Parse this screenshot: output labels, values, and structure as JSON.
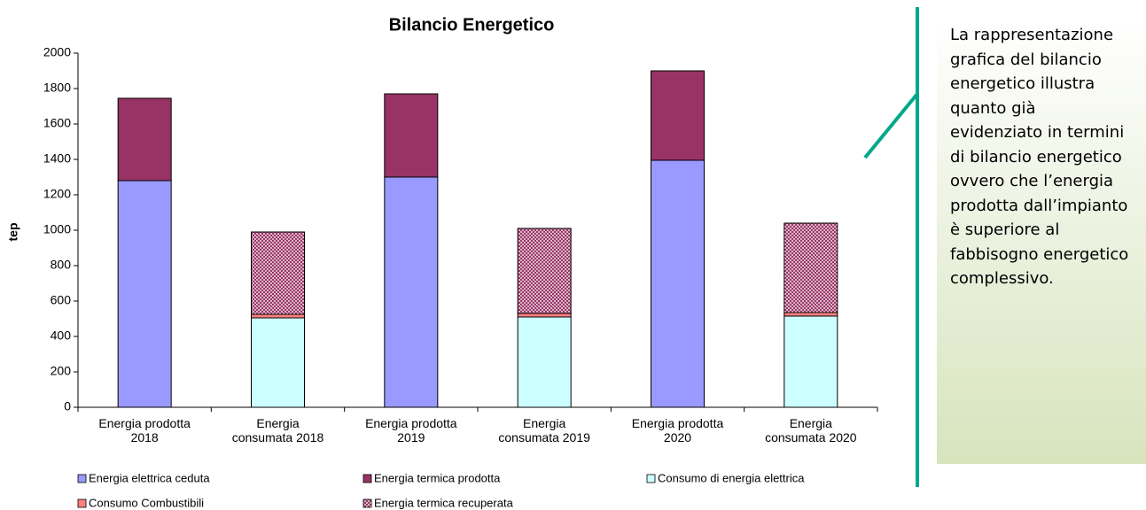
{
  "chart_data": {
    "type": "stacked_bar",
    "title": "Bilancio Energetico",
    "y_label": "tep",
    "categories": [
      "Energia prodotta 2018",
      "Energia consumata 2018",
      "Energia prodotta 2019",
      "Energia consumata 2019",
      "Energia prodotta 2020",
      "Energia consumata 2020"
    ],
    "series": [
      {
        "name": "Energia elettrica ceduta",
        "color": "#9999ff",
        "values": [
          1280,
          null,
          1300,
          null,
          1395,
          null
        ]
      },
      {
        "name": "Energia termica prodotta",
        "color": "#993366",
        "values": [
          465,
          null,
          470,
          null,
          505,
          null
        ]
      },
      {
        "name": "Consumo di energia elettrica",
        "color": "#ccffff",
        "values": [
          null,
          505,
          null,
          510,
          null,
          515
        ]
      },
      {
        "name": "Consumo Combustibili",
        "color": "#ff8080",
        "values": [
          null,
          20,
          null,
          20,
          null,
          20
        ]
      },
      {
        "name": "Energia termica recuperata",
        "color": "#993366",
        "pattern": "crosshatch",
        "values": [
          null,
          465,
          null,
          480,
          null,
          505
        ]
      }
    ],
    "ylim": [
      0,
      2000
    ],
    "yticks": [
      0,
      200,
      400,
      600,
      800,
      1000,
      1200,
      1400,
      1600,
      1800,
      2000
    ],
    "grid": false
  },
  "note": {
    "text": "La rappresentazione grafica del bilancio energetico illustra quanto già evidenziato in termini di bilancio energetico ovvero che l’energia prodotta dall’impianto è superiore al fabbisogno energetico complessivo."
  }
}
